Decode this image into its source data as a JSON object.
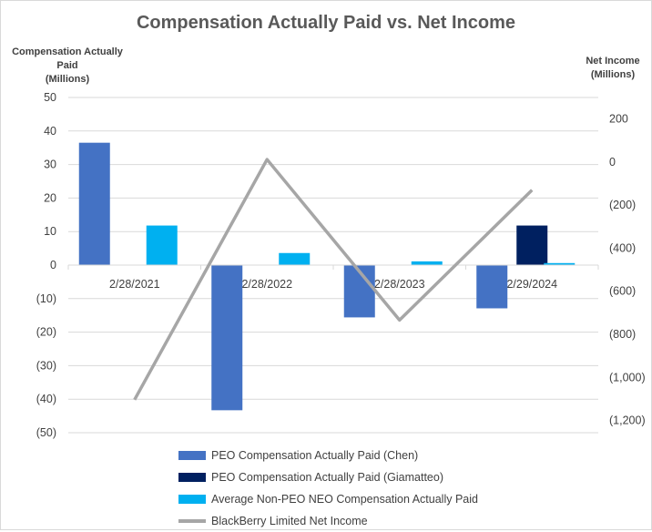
{
  "chart_data": {
    "type": "bar",
    "title": "Compensation  Actually Paid vs. Net Income",
    "ylabel": [
      "Compensation Actually",
      "Paid",
      "(Millions)"
    ],
    "y2label": [
      "Net Income",
      "(Millions)"
    ],
    "categories": [
      "2/28/2021",
      "2/28/2022",
      "2/28/2023",
      "2/29/2024"
    ],
    "ylim": [
      -50,
      50
    ],
    "yticks": [
      50,
      40,
      30,
      20,
      10,
      0,
      -10,
      -20,
      -30,
      -40,
      -50
    ],
    "ytick_labels": [
      "50",
      "40",
      "30",
      "20",
      "10",
      "0",
      "(10)",
      "(20)",
      "(30)",
      "(40)",
      "(50)"
    ],
    "y2lim": [
      -1257,
      300
    ],
    "y2ticks": [
      200,
      0,
      -200,
      -400,
      -600,
      -800,
      -1000,
      -1200
    ],
    "y2tick_labels": [
      "200",
      "0",
      "(200)",
      "(400)",
      "(600)",
      "(800)",
      "(1,000)",
      "(1,200)"
    ],
    "series": [
      {
        "name": "PEO Compensation Actually Paid (Chen)",
        "kind": "bar",
        "color": "#4472c4",
        "values": [
          36.5,
          -43.3,
          -15.6,
          -12.9
        ]
      },
      {
        "name": "PEO Compensation Actually Paid (Giamatteo)",
        "kind": "bar",
        "color": "#002060",
        "values": [
          null,
          null,
          null,
          11.8
        ]
      },
      {
        "name": "Average Non-PEO NEO Compensation Actually Paid",
        "kind": "bar",
        "color": "#00b0f0",
        "values": [
          11.8,
          3.6,
          1.1,
          0.6
        ]
      },
      {
        "name": "BlackBerry Limited Net Income",
        "kind": "line",
        "axis": "secondary",
        "color": "#a6a6a6",
        "values": [
          -1104,
          12,
          -734,
          -130
        ]
      }
    ],
    "grid": true,
    "legend": "bottom"
  }
}
